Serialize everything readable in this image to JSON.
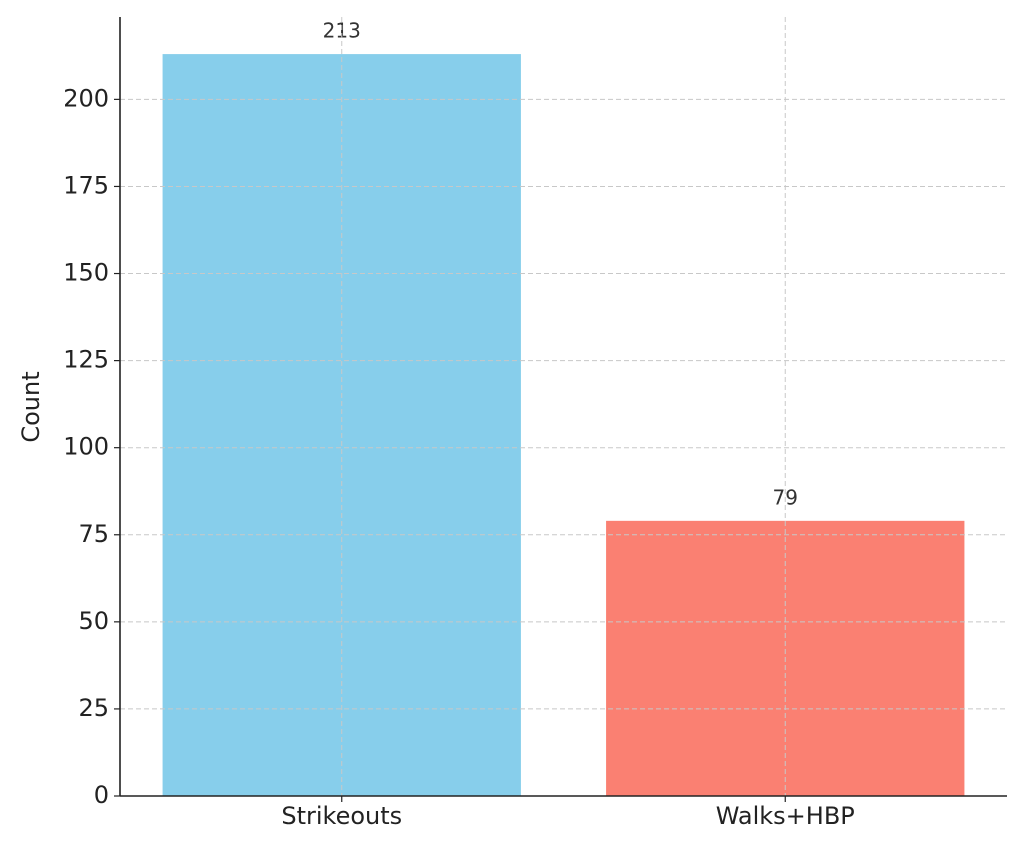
{
  "chart_data": {
    "type": "bar",
    "y_label": "Count",
    "categories": [
      "Strikeouts",
      "Walks+HBP"
    ],
    "values": [
      213,
      79
    ],
    "colors": [
      "#87ceeb",
      "#fa8072"
    ],
    "ylim": [
      0,
      223.65
    ],
    "yticks": [
      0,
      25,
      50,
      75,
      100,
      125,
      150,
      175,
      200
    ],
    "grid": true
  }
}
